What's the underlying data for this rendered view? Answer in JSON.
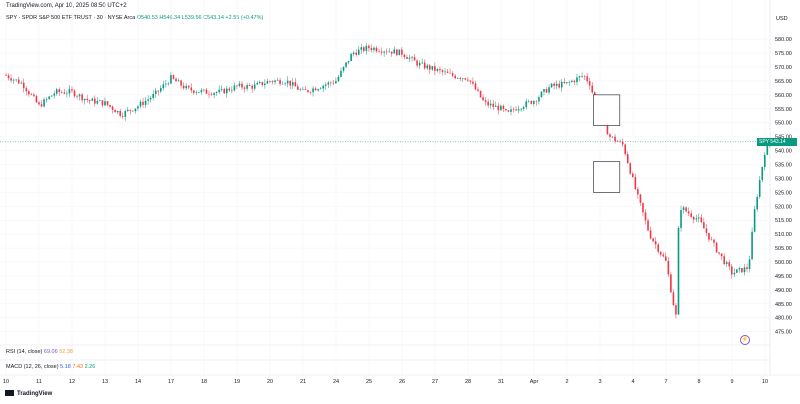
{
  "watermark": "TradingView.com, Apr 10, 2025 08:50 UTC+2",
  "legend": {
    "symbol": "SPY · SPDR S&P 500 ETF TRUST · 30 · NYSE Arca",
    "ohlc": "O540.53  H546.34  L539.56  C543.14  +2.55 (+0.47%)"
  },
  "currency": "USD",
  "price_tag": "SPY  543.14",
  "indicators": {
    "rsi_label": "RSI (14, close)",
    "rsi_v1": "69.06",
    "rsi_v2": "52.38",
    "macd_label": "MACD (12, 26, close)",
    "macd_v1": "5.18",
    "macd_v2": "7.43",
    "macd_v3": "2.26"
  },
  "brand": "TradingView",
  "colors": {
    "up": "#089981",
    "down": "#f23645"
  },
  "chart_data": {
    "type": "candlestick",
    "y_ticks": [
      475,
      480,
      485,
      490,
      495,
      500,
      505,
      510,
      515,
      520,
      525,
      530,
      535,
      540,
      545,
      550,
      555,
      560,
      565,
      570,
      575,
      580
    ],
    "ylim": [
      472,
      584
    ],
    "x_ticks": [
      "10",
      "11",
      "12",
      "13",
      "14",
      "17",
      "18",
      "19",
      "20",
      "21",
      "24",
      "25",
      "26",
      "27",
      "28",
      "31",
      "Apr",
      "2",
      "3",
      "4",
      "7",
      "8",
      "9",
      "10"
    ],
    "current_price": 543.14,
    "anchors": [
      [
        0,
        567
      ],
      [
        0.5,
        564
      ],
      [
        1,
        556
      ],
      [
        1.5,
        561
      ],
      [
        2,
        561
      ],
      [
        2.5,
        558
      ],
      [
        3,
        557
      ],
      [
        3.5,
        553
      ],
      [
        4,
        556
      ],
      [
        4.5,
        560
      ],
      [
        5,
        566
      ],
      [
        5.5,
        562
      ],
      [
        6,
        561
      ],
      [
        6.5,
        561
      ],
      [
        7,
        563
      ],
      [
        7.5,
        563
      ],
      [
        8,
        565
      ],
      [
        8.5,
        565
      ],
      [
        9,
        561
      ],
      [
        9.5,
        563
      ],
      [
        10,
        565
      ],
      [
        10.5,
        575
      ],
      [
        11,
        577
      ],
      [
        11.5,
        576
      ],
      [
        12,
        575
      ],
      [
        12.5,
        571
      ],
      [
        13,
        569
      ],
      [
        13.5,
        567
      ],
      [
        14,
        566
      ],
      [
        14.5,
        557
      ],
      [
        15,
        555
      ],
      [
        15.2,
        553
      ],
      [
        15.4,
        555
      ],
      [
        16,
        558
      ],
      [
        16.5,
        563
      ],
      [
        17,
        564
      ],
      [
        17.5,
        567
      ],
      [
        17.7,
        564
      ],
      [
        17.9,
        555
      ],
      [
        18.3,
        545
      ],
      [
        18.7,
        542
      ],
      [
        19.1,
        525
      ],
      [
        19.5,
        510
      ],
      [
        20,
        500
      ],
      [
        20.3,
        480
      ],
      [
        20.4,
        520
      ],
      [
        21,
        515
      ],
      [
        21.5,
        505
      ],
      [
        22,
        496
      ],
      [
        22.5,
        498
      ],
      [
        22.7,
        520
      ],
      [
        23,
        540
      ],
      [
        23.2,
        543.14
      ]
    ],
    "boxes": [
      {
        "from": 17.8,
        "to": 18.6,
        "low": 549,
        "high": 560
      },
      {
        "from": 17.8,
        "to": 18.6,
        "low": 525,
        "high": 536
      }
    ]
  }
}
